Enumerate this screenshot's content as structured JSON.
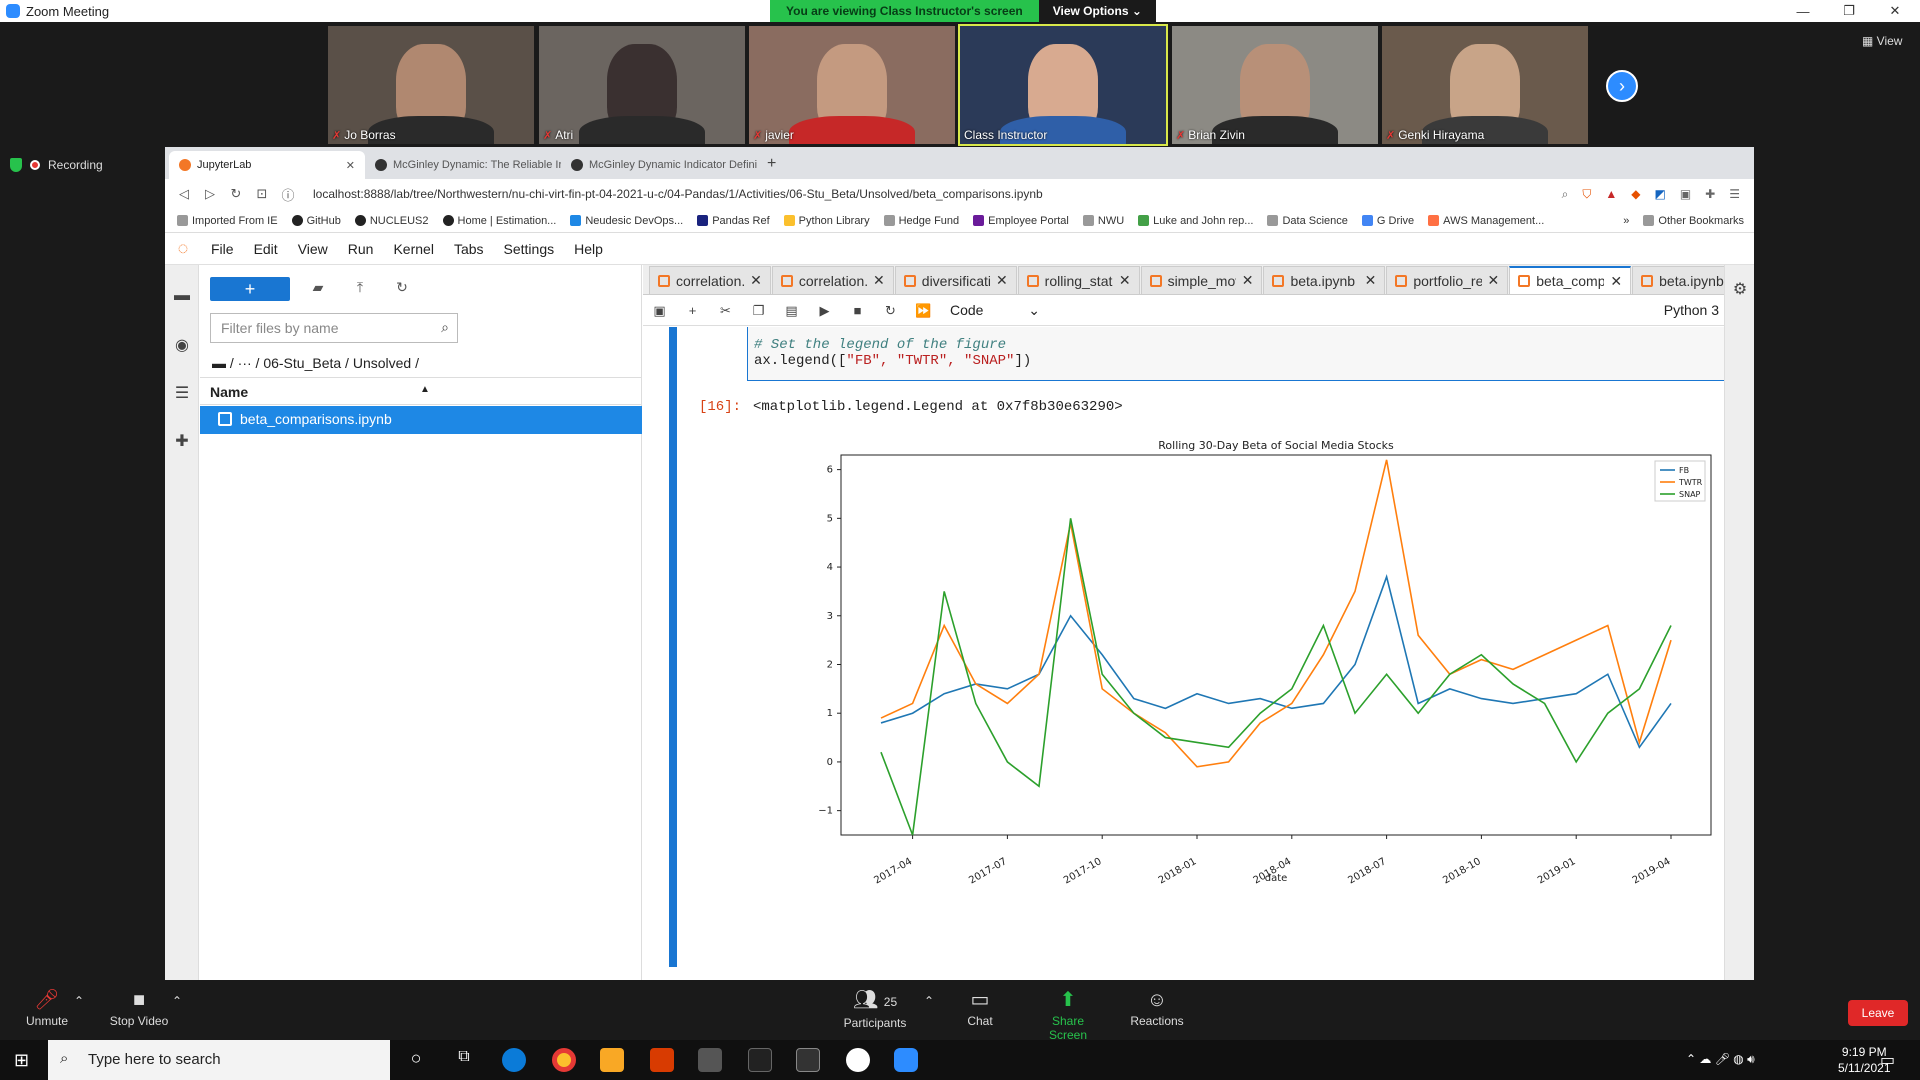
{
  "zoom": {
    "window_title": "Zoom Meeting",
    "share_banner": "You are viewing Class Instructor's screen",
    "view_options": "View Options",
    "view_label": "View",
    "recording": "Recording",
    "participants": [
      {
        "name": "Jo Borras"
      },
      {
        "name": "Atri"
      },
      {
        "name": "javier"
      },
      {
        "name": "Class Instructor"
      },
      {
        "name": "Brian Zivin"
      },
      {
        "name": "Genki Hirayama"
      }
    ],
    "bottom": {
      "unmute": "Unmute",
      "stop_video": "Stop Video",
      "participants": "Participants",
      "participant_count": "25",
      "chat": "Chat",
      "share_screen": "Share Screen",
      "reactions": "Reactions",
      "leave": "Leave"
    }
  },
  "browser": {
    "tabs": [
      {
        "label": "JupyterLab"
      },
      {
        "label": "McGinley Dynamic: The Reliable Ir"
      },
      {
        "label": "McGinley Dynamic Indicator Definit"
      }
    ],
    "url": "localhost:8888/lab/tree/Northwestern/nu-chi-virt-fin-pt-04-2021-u-c/04-Pandas/1/Activities/06-Stu_Beta/Unsolved/beta_comparisons.ipynb",
    "bookmarks": [
      "Imported From IE",
      "GitHub",
      "NUCLEUS2",
      "Home | Estimation...",
      "Neudesic DevOps...",
      "Pandas Ref",
      "Python Library",
      "Hedge Fund",
      "Employee Portal",
      "NWU",
      "Luke and John rep...",
      "Data Science",
      "G Drive",
      "AWS Management..."
    ],
    "other_bookmarks": "Other Bookmarks"
  },
  "jupyter": {
    "menu": [
      "File",
      "Edit",
      "View",
      "Run",
      "Kernel",
      "Tabs",
      "Settings",
      "Help"
    ],
    "filter_placeholder": "Filter files by name",
    "breadcrumb": "/  ···  / 06-Stu_Beta / Unsolved /",
    "column_name": "Name",
    "file": "beta_comparisons.ipynb",
    "notebook_tabs": [
      "correlation.ip",
      "correlation.ip",
      "diversificatio",
      "rolling_statis",
      "simple_movi",
      "beta.ipynb",
      "portfolio_ret",
      "beta_compa",
      "beta.ipynb"
    ],
    "active_tab_index": 7,
    "cell_type": "Code",
    "kernel": "Python 3",
    "code_comment": "# Set the legend of the figure",
    "code_line_prefix": "ax.legend([",
    "code_args": "\"FB\", \"TWTR\", \"SNAP\"",
    "code_line_suffix": "])",
    "out_prompt": "[16]:",
    "out_text": "<matplotlib.legend.Legend at 0x7f8b30e63290>"
  },
  "taskbar": {
    "search": "Type here to search",
    "time": "9:19 PM",
    "date": "5/11/2021"
  },
  "chart_data": {
    "type": "line",
    "title": "Rolling 30-Day Beta of Social Media Stocks",
    "xlabel": "date",
    "ylabel": "",
    "x_ticks": [
      "2017-04",
      "2017-07",
      "2017-10",
      "2018-01",
      "2018-04",
      "2018-07",
      "2018-10",
      "2019-01",
      "2019-04"
    ],
    "x": [
      "2017-03",
      "2017-04",
      "2017-05",
      "2017-06",
      "2017-07",
      "2017-08",
      "2017-09",
      "2017-10",
      "2017-11",
      "2017-12",
      "2018-01",
      "2018-02",
      "2018-03",
      "2018-04",
      "2018-05",
      "2018-06",
      "2018-07",
      "2018-08",
      "2018-09",
      "2018-10",
      "2018-11",
      "2018-12",
      "2019-01",
      "2019-02",
      "2019-03",
      "2019-04"
    ],
    "yticks": [
      -1,
      0,
      1,
      2,
      3,
      4,
      5,
      6
    ],
    "ylim": [
      -1.5,
      6.3
    ],
    "legend": "top-right",
    "grid": false,
    "series": [
      {
        "name": "FB",
        "color": "#1f77b4",
        "values": [
          0.8,
          1.0,
          1.4,
          1.6,
          1.5,
          1.8,
          3.0,
          2.2,
          1.3,
          1.1,
          1.4,
          1.2,
          1.3,
          1.1,
          1.2,
          2.0,
          3.8,
          1.2,
          1.5,
          1.3,
          1.2,
          1.3,
          1.4,
          1.8,
          0.3,
          1.2
        ]
      },
      {
        "name": "TWTR",
        "color": "#ff7f0e",
        "values": [
          0.9,
          1.2,
          2.8,
          1.6,
          1.2,
          1.8,
          4.9,
          1.5,
          1.0,
          0.6,
          -0.1,
          0.0,
          0.8,
          1.2,
          2.2,
          3.5,
          6.2,
          2.6,
          1.8,
          2.1,
          1.9,
          2.2,
          2.5,
          2.8,
          0.4,
          2.5
        ]
      },
      {
        "name": "SNAP",
        "color": "#2ca02c",
        "values": [
          0.2,
          -1.5,
          3.5,
          1.2,
          0.0,
          -0.5,
          5.0,
          1.8,
          1.0,
          0.5,
          0.4,
          0.3,
          1.0,
          1.5,
          2.8,
          1.0,
          1.8,
          1.0,
          1.8,
          2.2,
          1.6,
          1.2,
          0.0,
          1.0,
          1.5,
          2.8
        ]
      }
    ]
  }
}
